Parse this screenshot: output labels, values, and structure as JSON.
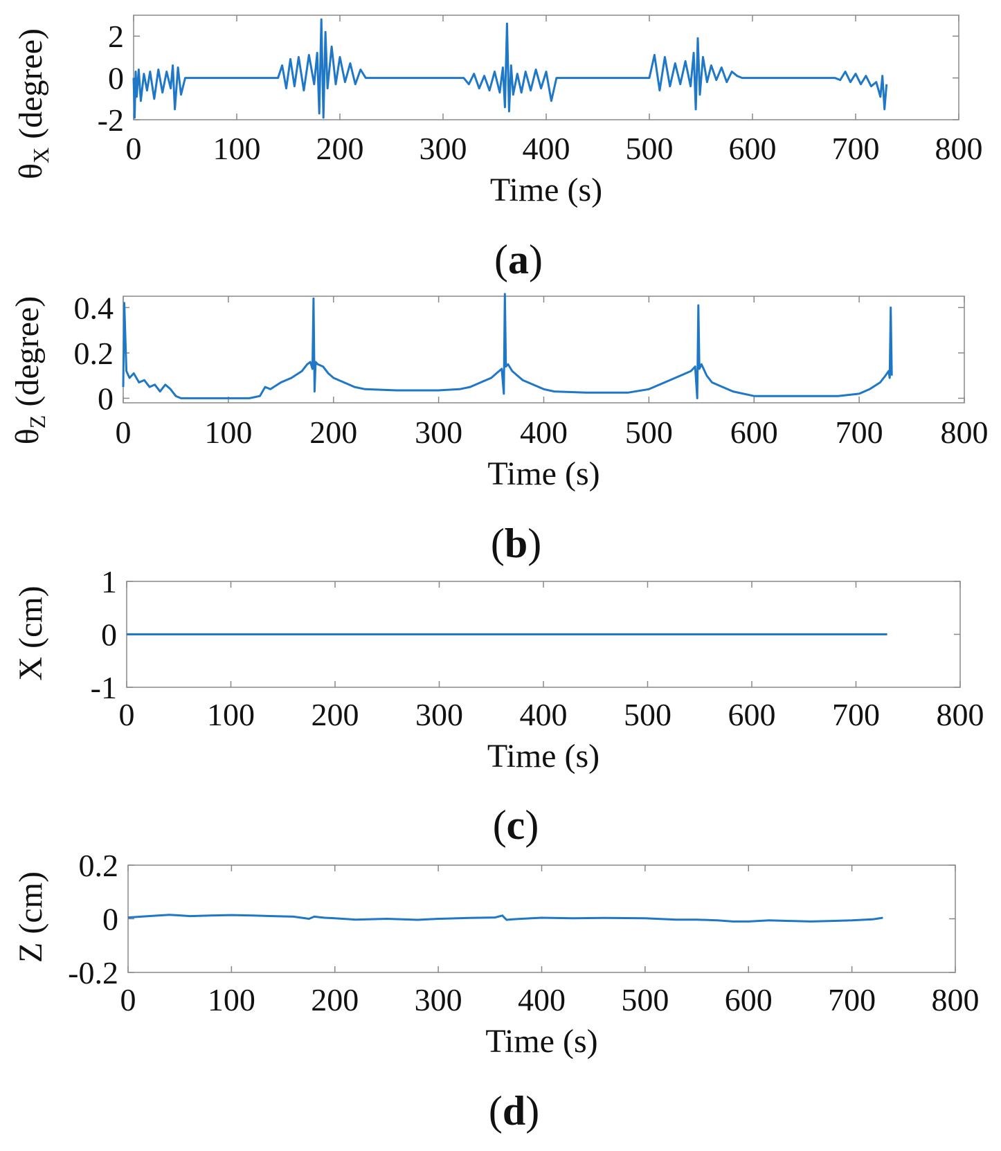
{
  "colors": {
    "line": "#1f77c7",
    "axes": "#888888",
    "text": "#111111"
  },
  "chart_data": [
    {
      "type": "line",
      "panel": "a",
      "caption_letter": "a",
      "title": "",
      "xlabel": "Time (s)",
      "ylabel_main": "θ",
      "ylabel_sub": "X",
      "ylabel_rest": " (degree)",
      "xlim": [
        0,
        800
      ],
      "ylim": [
        -2,
        3
      ],
      "xticks": [
        0,
        100,
        200,
        300,
        400,
        500,
        600,
        700,
        800
      ],
      "xtick_labels": [
        "0",
        "100",
        "200",
        "300",
        "400",
        "500",
        "600",
        "700",
        "800"
      ],
      "yticks": [
        -2,
        0,
        2
      ],
      "ytick_labels": [
        "-2",
        "0",
        "2"
      ],
      "grid": false,
      "series": [
        {
          "name": "θX",
          "x": [
            0,
            1,
            2,
            3,
            5,
            7,
            10,
            13,
            16,
            20,
            24,
            28,
            32,
            36,
            38,
            40,
            43,
            46,
            50,
            140,
            144,
            148,
            152,
            156,
            160,
            165,
            170,
            175,
            178,
            180,
            182,
            184,
            186,
            188,
            192,
            196,
            200,
            205,
            210,
            215,
            220,
            225,
            320,
            325,
            330,
            335,
            340,
            345,
            350,
            355,
            358,
            360,
            362,
            364,
            366,
            368,
            372,
            376,
            380,
            385,
            390,
            395,
            400,
            405,
            410,
            500,
            505,
            510,
            515,
            520,
            525,
            530,
            535,
            540,
            543,
            545,
            547,
            549,
            552,
            556,
            560,
            565,
            570,
            575,
            580,
            585,
            590,
            680,
            685,
            690,
            695,
            700,
            705,
            710,
            715,
            720,
            724,
            726,
            728,
            730
          ],
          "values": [
            0,
            -1.9,
            0.3,
            -0.9,
            0.4,
            -1.1,
            0.2,
            -0.6,
            0.3,
            -1.0,
            0.4,
            -0.7,
            0.3,
            -0.5,
            0.6,
            -1.5,
            0.5,
            -0.8,
            0,
            0,
            0.6,
            -0.5,
            0.9,
            -0.4,
            1.0,
            -0.6,
            1.1,
            -0.3,
            1.2,
            -1.7,
            2.8,
            -1.9,
            2.2,
            -0.5,
            1.5,
            -0.3,
            1.0,
            -0.2,
            0.7,
            -0.3,
            0.4,
            0,
            0,
            -0.3,
            0.2,
            -0.5,
            0.1,
            -0.6,
            0.3,
            -0.7,
            0.5,
            -1.4,
            2.6,
            -1.6,
            0.6,
            -0.8,
            0.2,
            -0.7,
            0.3,
            -0.6,
            0.4,
            -0.5,
            0.3,
            -1.1,
            0,
            0,
            1.1,
            -0.6,
            1.0,
            -0.4,
            0.7,
            -0.3,
            0.8,
            -0.4,
            1.2,
            -1.5,
            1.9,
            -0.8,
            1.0,
            -0.2,
            0.6,
            -0.1,
            0.5,
            -0.2,
            0.3,
            0.1,
            0,
            0,
            -0.1,
            0.3,
            -0.2,
            0.2,
            -0.3,
            0.1,
            -0.4,
            -0.2,
            -0.9,
            0.1,
            -1.5,
            -0.3
          ]
        }
      ]
    },
    {
      "type": "line",
      "panel": "b",
      "caption_letter": "b",
      "title": "",
      "xlabel": "Time (s)",
      "ylabel_main": "θ",
      "ylabel_sub": "Z",
      "ylabel_rest": " (degree)",
      "xlim": [
        0,
        800
      ],
      "ylim": [
        -0.02,
        0.45
      ],
      "xticks": [
        0,
        100,
        200,
        300,
        400,
        500,
        600,
        700,
        800
      ],
      "xtick_labels": [
        "0",
        "100",
        "200",
        "300",
        "400",
        "500",
        "600",
        "700",
        "800"
      ],
      "yticks": [
        0,
        0.2,
        0.4
      ],
      "ytick_labels": [
        "0",
        "0.2",
        "0.4"
      ],
      "grid": false,
      "series": [
        {
          "name": "θZ",
          "x": [
            0,
            1,
            3,
            6,
            10,
            15,
            20,
            25,
            30,
            35,
            40,
            45,
            50,
            55,
            60,
            80,
            100,
            120,
            130,
            135,
            140,
            150,
            160,
            170,
            175,
            178,
            180,
            181,
            182,
            183,
            185,
            190,
            195,
            200,
            210,
            220,
            230,
            260,
            300,
            320,
            330,
            340,
            350,
            355,
            360,
            362,
            363,
            364,
            366,
            370,
            375,
            380,
            390,
            400,
            410,
            440,
            480,
            500,
            510,
            520,
            530,
            540,
            544,
            546,
            547,
            548,
            550,
            555,
            560,
            570,
            580,
            600,
            640,
            680,
            700,
            710,
            720,
            725,
            728,
            729,
            730,
            731
          ],
          "values": [
            0.05,
            0.42,
            0.12,
            0.09,
            0.11,
            0.07,
            0.08,
            0.05,
            0.06,
            0.03,
            0.06,
            0.04,
            0.01,
            0.0,
            0.0,
            0.0,
            0.0,
            0.0,
            0.01,
            0.05,
            0.04,
            0.07,
            0.09,
            0.12,
            0.15,
            0.16,
            0.13,
            0.44,
            0.03,
            0.16,
            0.15,
            0.14,
            0.11,
            0.09,
            0.07,
            0.05,
            0.04,
            0.035,
            0.035,
            0.04,
            0.05,
            0.07,
            0.09,
            0.11,
            0.13,
            0.02,
            0.46,
            0.14,
            0.15,
            0.12,
            0.1,
            0.08,
            0.06,
            0.04,
            0.03,
            0.025,
            0.025,
            0.04,
            0.06,
            0.08,
            0.1,
            0.12,
            0.14,
            0.0,
            0.41,
            0.13,
            0.15,
            0.1,
            0.07,
            0.05,
            0.03,
            0.01,
            0.01,
            0.01,
            0.02,
            0.04,
            0.07,
            0.1,
            0.12,
            0.09,
            0.4,
            0.1
          ]
        }
      ]
    },
    {
      "type": "line",
      "panel": "c",
      "caption_letter": "c",
      "title": "",
      "xlabel": "Time (s)",
      "ylabel_main": "X (cm)",
      "ylabel_sub": "",
      "ylabel_rest": "",
      "xlim": [
        0,
        800
      ],
      "ylim": [
        -1,
        1
      ],
      "xticks": [
        0,
        100,
        200,
        300,
        400,
        500,
        600,
        700,
        800
      ],
      "xtick_labels": [
        "0",
        "100",
        "200",
        "300",
        "400",
        "500",
        "600",
        "700",
        "800"
      ],
      "yticks": [
        -1,
        0,
        1
      ],
      "ytick_labels": [
        "-1",
        "0",
        "1"
      ],
      "grid": false,
      "series": [
        {
          "name": "X",
          "x": [
            0,
            730
          ],
          "values": [
            0,
            0
          ]
        }
      ]
    },
    {
      "type": "line",
      "panel": "d",
      "caption_letter": "d",
      "title": "",
      "xlabel": "Time (s)",
      "ylabel_main": "Z (cm)",
      "ylabel_sub": "",
      "ylabel_rest": "",
      "xlim": [
        0,
        800
      ],
      "ylim": [
        -0.2,
        0.2
      ],
      "xticks": [
        0,
        100,
        200,
        300,
        400,
        500,
        600,
        700,
        800
      ],
      "xtick_labels": [
        "0",
        "100",
        "200",
        "300",
        "400",
        "500",
        "600",
        "700",
        "800"
      ],
      "yticks": [
        -0.2,
        0,
        0.2
      ],
      "ytick_labels": [
        "-0.2",
        "0",
        "0.2"
      ],
      "grid": false,
      "series": [
        {
          "name": "Z",
          "x": [
            0,
            20,
            40,
            60,
            80,
            100,
            120,
            140,
            160,
            175,
            180,
            190,
            200,
            220,
            250,
            280,
            300,
            330,
            355,
            362,
            366,
            372,
            380,
            400,
            430,
            460,
            500,
            530,
            550,
            570,
            585,
            600,
            620,
            640,
            660,
            680,
            700,
            720,
            730
          ],
          "values": [
            0.005,
            0.01,
            0.015,
            0.01,
            0.012,
            0.014,
            0.012,
            0.01,
            0.008,
            0.0,
            0.008,
            0.004,
            0.002,
            -0.003,
            0.0,
            -0.004,
            0.0,
            0.003,
            0.005,
            0.012,
            -0.004,
            -0.002,
            0.0,
            0.004,
            0.002,
            0.003,
            0.002,
            -0.003,
            -0.003,
            -0.006,
            -0.01,
            -0.01,
            -0.006,
            -0.008,
            -0.01,
            -0.008,
            -0.006,
            -0.002,
            0.004
          ]
        }
      ]
    }
  ]
}
